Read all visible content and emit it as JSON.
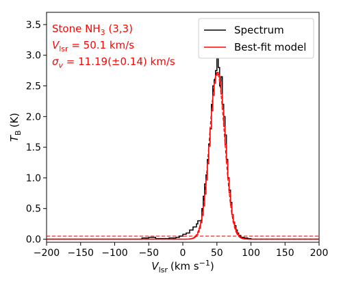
{
  "chart_data": {
    "type": "line",
    "xlabel": "V",
    "xlabel_sub": "lsr",
    "xlabel_unit": "(km s",
    "xlabel_unit_sup": "−1",
    "xlabel_unit_end": ")",
    "ylabel": "T",
    "ylabel_sub": "B",
    "ylabel_unit": "(K)",
    "xlim": [
      -200,
      200
    ],
    "ylim": [
      -0.05,
      3.7
    ],
    "xticks": [
      -200,
      -150,
      -100,
      -50,
      0,
      50,
      100,
      150,
      200
    ],
    "xtick_labels": [
      "−200",
      "−150",
      "−100",
      "−50",
      "0",
      "50",
      "100",
      "150",
      "200"
    ],
    "yticks": [
      0.0,
      0.5,
      1.0,
      1.5,
      2.0,
      2.5,
      3.0,
      3.5
    ],
    "ytick_labels": [
      "0.0",
      "0.5",
      "1.0",
      "1.5",
      "2.0",
      "2.5",
      "3.0",
      "3.5"
    ],
    "grid": false,
    "legend_position": "top-right",
    "annotations": {
      "line1_main": "Stone NH",
      "line1_sub": "3",
      "line1_end": " (3,3)",
      "line2_main": "V",
      "line2_sub": "lsr",
      "line2_end": " = 50.1 km/s",
      "line3_main": "σ",
      "line3_sub": "v",
      "line3_end": " = 11.19(±0.14) km/s",
      "color": "#ff0000"
    },
    "series": [
      {
        "name": "Spectrum",
        "color": "#000000",
        "style": "steps",
        "x": [
          -200,
          -150,
          -100,
          -60,
          -50,
          -40,
          -20,
          -10,
          -5,
          0,
          5,
          10,
          15,
          20,
          22,
          25,
          28,
          30,
          32,
          34,
          36,
          38,
          40,
          42,
          44,
          46,
          48,
          50,
          52,
          54,
          56,
          58,
          60,
          62,
          64,
          66,
          68,
          70,
          72,
          74,
          76,
          78,
          80,
          82,
          85,
          90,
          95,
          100,
          110,
          150,
          200
        ],
        "y": [
          0.0,
          0.0,
          0.0,
          0.02,
          0.03,
          0.01,
          0.02,
          0.03,
          0.05,
          0.08,
          0.1,
          0.15,
          0.2,
          0.25,
          0.3,
          0.3,
          0.5,
          0.7,
          0.9,
          1.05,
          1.3,
          1.55,
          1.8,
          2.2,
          2.5,
          2.6,
          2.75,
          2.95,
          2.8,
          2.5,
          2.65,
          2.2,
          2.0,
          1.7,
          1.3,
          1.0,
          0.8,
          0.6,
          0.4,
          0.28,
          0.22,
          0.15,
          0.1,
          0.06,
          0.03,
          0.02,
          0.01,
          0.0,
          0.0,
          0.0,
          0.0
        ]
      },
      {
        "name": "Best-fit model",
        "color": "#ff0000",
        "style": "steps",
        "model": {
          "amplitude": 2.72,
          "center": 50.1,
          "sigma": 11.19
        }
      },
      {
        "name": "",
        "color": "#ff0000",
        "style": "dashed",
        "x": [
          -200,
          200
        ],
        "y": [
          0.05,
          0.05
        ]
      },
      {
        "name": "",
        "color": "#ff0000",
        "style": "dashed",
        "model": {
          "amplitude": 2.72,
          "center": 50.1,
          "sigma": 11.19
        }
      }
    ]
  }
}
